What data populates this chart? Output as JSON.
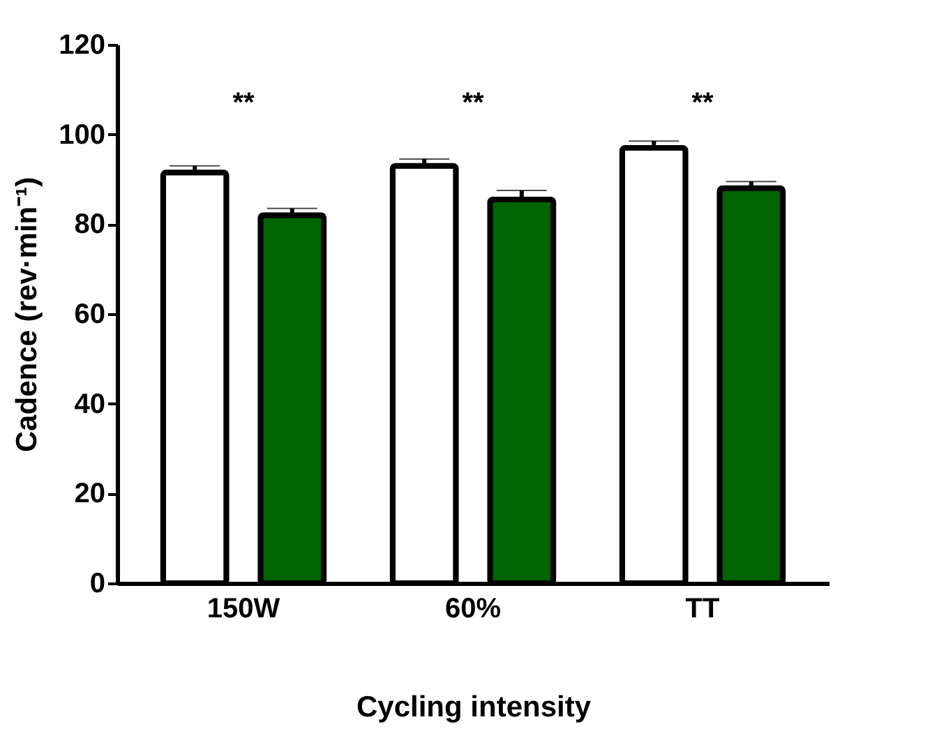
{
  "chart_data": {
    "type": "bar",
    "xlabel": "Cycling intensity",
    "ylabel": "Cadence (rev·min⁻¹)",
    "categories": [
      "150W",
      "60%",
      "TT"
    ],
    "series": [
      {
        "color": "#ffffff",
        "values": [
          91.5,
          93,
          97
        ],
        "errors": [
          [
            91.5,
            93
          ],
          [
            93,
            94.5
          ],
          [
            97,
            98.5
          ]
        ]
      },
      {
        "color": "#006400",
        "values": [
          82,
          85.5,
          88
        ],
        "errors": [
          [
            82,
            83.5
          ],
          [
            85.5,
            87.5
          ],
          [
            88,
            89.5
          ]
        ]
      }
    ],
    "annotations": [
      "**",
      "**",
      "**"
    ],
    "ylim": [
      0,
      120
    ],
    "yticks": [
      0,
      20,
      40,
      60,
      80,
      100,
      120
    ]
  }
}
